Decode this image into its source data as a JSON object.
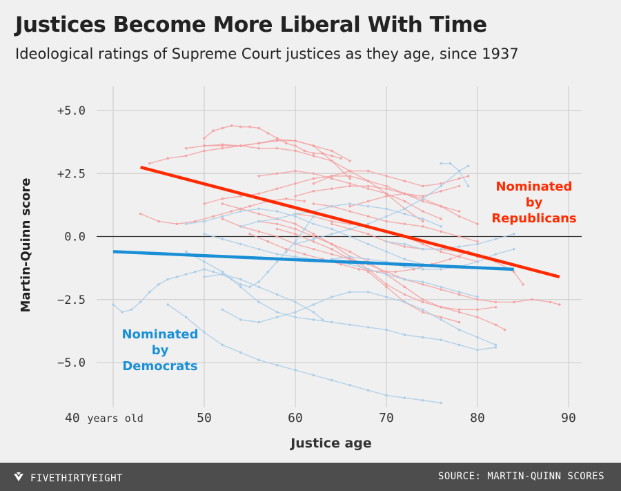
{
  "title": "Justices Become More Liberal With Time",
  "subtitle": "Ideological ratings of Supreme Court justices as they age, since 1937",
  "footer": {
    "brand": "FIVETHIRTYEIGHT",
    "source": "SOURCE: MARTIN-QUINN SCORES",
    "logo_icon": "fivethirtyeight-logo-icon"
  },
  "chart_data": {
    "type": "line",
    "title": "Justices Become More Liberal With Time",
    "subtitle": "Ideological ratings of Supreme Court justices as they age, since 1937",
    "xlabel": "Justice age",
    "ylabel": "Martin-Quinn score",
    "xlim": [
      39,
      91
    ],
    "ylim": [
      -6.6,
      5.8
    ],
    "x_ticks": [
      40,
      50,
      60,
      70,
      80,
      90
    ],
    "x_tick_labels": [
      "40 years old",
      "50",
      "60",
      "70",
      "80",
      "90"
    ],
    "y_ticks": [
      5,
      2.5,
      0,
      -2.5,
      -5
    ],
    "y_tick_labels": [
      "+5.0",
      "+2.5",
      "0.0",
      "−2.5",
      "−5.0"
    ],
    "grid": true,
    "colors": {
      "republican": "#ff2a00",
      "democrat": "#1a8fd6",
      "republican_faint": "#f5a0a0",
      "democrat_faint": "#a9cce8",
      "zero_line": "#333333",
      "grid": "#cfcfcf"
    },
    "annotations": [
      {
        "text_lines": [
          "Nominated",
          "by",
          "Republicans"
        ],
        "series": "republican"
      },
      {
        "text_lines": [
          "Nominated",
          "by",
          "Democrats"
        ],
        "series": "democrat"
      }
    ],
    "trend_lines": [
      {
        "group": "republican",
        "x": [
          43,
          89
        ],
        "y": [
          2.75,
          -1.6
        ]
      },
      {
        "group": "democrat",
        "x": [
          40,
          84
        ],
        "y": [
          -0.6,
          -1.3
        ]
      }
    ],
    "series": [
      {
        "group": "republican",
        "x": [
          50,
          51,
          52,
          53,
          54,
          55,
          56,
          57,
          58,
          59,
          60,
          61,
          62,
          63,
          64,
          65
        ],
        "y": [
          3.9,
          4.2,
          4.3,
          4.4,
          4.35,
          4.35,
          4.3,
          4.1,
          3.9,
          3.7,
          3.6,
          3.4,
          3.3,
          3.3,
          3.2,
          3.1
        ]
      },
      {
        "group": "republican",
        "x": [
          50,
          52,
          54,
          56,
          58,
          60,
          62,
          64,
          66
        ],
        "y": [
          3.6,
          3.65,
          3.6,
          3.7,
          3.85,
          3.8,
          3.6,
          3.0,
          2.3
        ]
      },
      {
        "group": "republican",
        "x": [
          48,
          50,
          52,
          54,
          56,
          58,
          60,
          62,
          64,
          66,
          68,
          70,
          72,
          74
        ],
        "y": [
          3.5,
          3.6,
          3.6,
          3.6,
          3.5,
          3.5,
          3.4,
          3.2,
          3.0,
          2.6,
          2.2,
          1.7,
          1.1,
          0.6
        ]
      },
      {
        "group": "republican",
        "x": [
          44,
          46,
          48,
          50,
          52,
          54,
          56,
          58,
          60,
          62,
          64,
          66
        ],
        "y": [
          2.9,
          3.1,
          3.2,
          3.4,
          3.5,
          3.6,
          3.7,
          3.8,
          3.8,
          3.6,
          3.4,
          3.0
        ]
      },
      {
        "group": "republican",
        "x": [
          56,
          58,
          60,
          62,
          64,
          66,
          68,
          70,
          72,
          74,
          76
        ],
        "y": [
          2.4,
          2.5,
          2.6,
          2.5,
          2.3,
          2.1,
          1.9,
          1.7,
          1.4,
          1.0,
          0.7
        ]
      },
      {
        "group": "republican",
        "x": [
          43,
          45,
          47,
          49,
          51,
          53,
          55,
          57,
          59,
          61
        ],
        "y": [
          0.9,
          0.6,
          0.5,
          0.6,
          0.8,
          1.0,
          1.2,
          1.4,
          1.5,
          1.4
        ]
      },
      {
        "group": "republican",
        "x": [
          50,
          52,
          54,
          56,
          58,
          60,
          62,
          64,
          66,
          68,
          70,
          72,
          74,
          76,
          78
        ],
        "y": [
          1.3,
          1.5,
          1.6,
          1.7,
          1.9,
          2.1,
          2.3,
          2.4,
          2.4,
          2.2,
          2.0,
          1.7,
          1.4,
          1.2,
          1.0
        ]
      },
      {
        "group": "republican",
        "x": [
          60,
          62,
          64,
          66,
          68,
          70,
          72,
          74,
          76,
          78
        ],
        "y": [
          1.6,
          1.8,
          1.9,
          2.0,
          2.0,
          1.9,
          1.7,
          1.6,
          1.8,
          2.0
        ]
      },
      {
        "group": "republican",
        "x": [
          62,
          64,
          66,
          68,
          70,
          72,
          74,
          76,
          78,
          79
        ],
        "y": [
          2.1,
          2.4,
          2.6,
          2.6,
          2.4,
          2.2,
          2.0,
          2.1,
          2.3,
          2.4
        ]
      },
      {
        "group": "republican",
        "x": [
          52,
          54,
          56,
          58,
          60,
          62,
          64,
          66,
          68,
          70,
          72,
          74,
          76,
          78,
          80,
          82,
          84,
          86,
          88,
          89
        ],
        "y": [
          0.7,
          0.4,
          0.2,
          0.0,
          -0.3,
          -0.5,
          -0.7,
          -0.9,
          -1.1,
          -1.4,
          -1.7,
          -1.9,
          -2.1,
          -2.3,
          -2.5,
          -2.6,
          -2.6,
          -2.5,
          -2.6,
          -2.7
        ]
      },
      {
        "group": "republican",
        "x": [
          52,
          54,
          56,
          58,
          60,
          62,
          64,
          66,
          68,
          70,
          72,
          74,
          76,
          78,
          80,
          82,
          83
        ],
        "y": [
          1.3,
          1.1,
          0.9,
          0.7,
          0.5,
          0.1,
          -0.3,
          -0.8,
          -1.3,
          -1.9,
          -2.3,
          -2.6,
          -2.8,
          -3.0,
          -3.2,
          -3.5,
          -3.7
        ]
      },
      {
        "group": "republican",
        "x": [
          56,
          58,
          60,
          62,
          64,
          66,
          68,
          70,
          72,
          74,
          76,
          78,
          80,
          82
        ],
        "y": [
          0.6,
          0.5,
          0.3,
          0.0,
          -0.3,
          -0.6,
          -1.0,
          -1.5,
          -2.0,
          -2.5,
          -2.8,
          -2.9,
          -2.9,
          -2.8
        ]
      },
      {
        "group": "republican",
        "x": [
          58,
          60,
          62,
          64,
          66,
          68,
          70,
          72,
          74,
          76,
          78
        ],
        "y": [
          0.3,
          0.1,
          -0.2,
          -0.5,
          -0.9,
          -1.4,
          -2.0,
          -2.6,
          -3.0,
          -3.2,
          -3.4
        ]
      },
      {
        "group": "republican",
        "x": [
          60,
          62,
          64,
          66,
          68,
          70,
          72,
          74,
          76,
          78,
          80
        ],
        "y": [
          0.9,
          0.8,
          0.6,
          0.5,
          0.4,
          0.2,
          0.0,
          -0.3,
          -0.6,
          -0.8,
          -1.0
        ]
      },
      {
        "group": "republican",
        "x": [
          55,
          57,
          59,
          61,
          63,
          65,
          67,
          69,
          71,
          73,
          75,
          77,
          79
        ],
        "y": [
          0.1,
          -0.2,
          -0.5,
          -0.7,
          -0.9,
          -1.1,
          -1.3,
          -1.4,
          -1.4,
          -1.3,
          -1.1,
          -0.9,
          -0.6
        ]
      },
      {
        "group": "republican",
        "x": [
          62,
          64,
          66,
          68,
          70,
          72,
          74,
          76,
          78,
          80
        ],
        "y": [
          1.3,
          1.2,
          1.0,
          0.8,
          0.6,
          0.5,
          0.4,
          0.2,
          0.0,
          -0.2
        ]
      },
      {
        "group": "republican",
        "x": [
          64,
          66,
          68,
          70,
          72,
          74,
          76,
          78,
          80,
          82,
          84,
          85
        ],
        "y": [
          0.5,
          0.3,
          0.1,
          -0.2,
          -0.4,
          -0.5,
          -0.5,
          -0.6,
          -0.8,
          -1.0,
          -1.4,
          -1.9
        ]
      },
      {
        "group": "republican",
        "x": [
          66,
          68,
          70,
          72,
          74,
          76,
          78,
          80
        ],
        "y": [
          1.2,
          1.4,
          1.6,
          1.7,
          1.5,
          1.2,
          0.8,
          0.5
        ]
      },
      {
        "group": "democrat",
        "x": [
          40,
          41,
          42,
          43,
          44,
          45,
          46,
          47,
          48,
          49,
          50,
          51,
          52,
          53,
          54,
          55,
          56,
          57,
          58,
          59,
          60,
          61,
          62
        ],
        "y": [
          -2.7,
          -3.0,
          -2.9,
          -2.6,
          -2.2,
          -1.9,
          -1.7,
          -1.6,
          -1.5,
          -1.4,
          -1.3,
          -1.4,
          -1.5,
          -1.7,
          -1.9,
          -2.0,
          -1.8,
          -1.4,
          -1.0,
          -0.6,
          -0.2,
          0.3,
          0.8
        ]
      },
      {
        "group": "democrat",
        "x": [
          46,
          48,
          50,
          52,
          54,
          56,
          58,
          60,
          62,
          64,
          66,
          68,
          70,
          72,
          74,
          76
        ],
        "y": [
          -2.7,
          -3.2,
          -3.8,
          -4.3,
          -4.6,
          -4.9,
          -5.1,
          -5.3,
          -5.5,
          -5.7,
          -5.9,
          -6.1,
          -6.3,
          -6.4,
          -6.5,
          -6.6
        ]
      },
      {
        "group": "democrat",
        "x": [
          48,
          50,
          52,
          54,
          56,
          58,
          60,
          62,
          64,
          66,
          68,
          70,
          72,
          74,
          76,
          78,
          80,
          82
        ],
        "y": [
          -0.6,
          -1.0,
          -1.4,
          -2.0,
          -2.6,
          -3.0,
          -3.2,
          -3.3,
          -3.4,
          -3.5,
          -3.6,
          -3.7,
          -3.9,
          -4.0,
          -4.1,
          -4.3,
          -4.5,
          -4.4
        ]
      },
      {
        "group": "democrat",
        "x": [
          50,
          52,
          54,
          56,
          58,
          60,
          62,
          63
        ],
        "y": [
          -1.6,
          -1.5,
          -1.7,
          -2.0,
          -2.3,
          -2.6,
          -3.0,
          -3.3
        ]
      },
      {
        "group": "democrat",
        "x": [
          52,
          54,
          56,
          58,
          60,
          62,
          64,
          66,
          68,
          70,
          72,
          74,
          76,
          78,
          80,
          82
        ],
        "y": [
          -2.9,
          -3.3,
          -3.4,
          -3.2,
          -3.0,
          -2.7,
          -2.4,
          -2.2,
          -2.2,
          -2.4,
          -2.6,
          -2.9,
          -3.3,
          -3.7,
          -4.0,
          -4.3
        ]
      },
      {
        "group": "democrat",
        "x": [
          50,
          52,
          54,
          56,
          58,
          60,
          62,
          64,
          66,
          68,
          70,
          72,
          74,
          76,
          78,
          80
        ],
        "y": [
          0.1,
          -0.1,
          -0.3,
          -0.5,
          -0.7,
          -0.8,
          -0.9,
          -1.0,
          -1.1,
          -1.3,
          -1.5,
          -1.7,
          -1.8,
          -2.0,
          -2.2,
          -2.4
        ]
      },
      {
        "group": "democrat",
        "x": [
          48,
          50,
          52,
          54,
          56,
          58,
          60,
          62,
          64,
          66,
          68,
          70,
          72,
          74,
          76
        ],
        "y": [
          0.5,
          0.6,
          0.8,
          1.0,
          1.1,
          1.0,
          0.8,
          0.5,
          0.3,
          0.0,
          -0.3,
          -0.6,
          -0.9,
          -1.1,
          -1.2
        ]
      },
      {
        "group": "democrat",
        "x": [
          54,
          56,
          58,
          60,
          62,
          64,
          66,
          68,
          70,
          72,
          74,
          76
        ],
        "y": [
          0.4,
          0.6,
          0.7,
          0.9,
          1.0,
          1.2,
          1.3,
          1.2,
          1.1,
          0.9,
          0.7,
          0.4
        ]
      },
      {
        "group": "democrat",
        "x": [
          60,
          62,
          64,
          66,
          68,
          70,
          72,
          74,
          76,
          78,
          79
        ],
        "y": [
          -0.3,
          -0.1,
          0.1,
          0.3,
          0.5,
          0.8,
          1.1,
          1.5,
          2.0,
          2.6,
          2.8
        ]
      },
      {
        "group": "democrat",
        "x": [
          76,
          77,
          78,
          79
        ],
        "y": [
          2.9,
          2.9,
          2.6,
          2.0
        ]
      },
      {
        "group": "democrat",
        "x": [
          64,
          66,
          68,
          70,
          72,
          74,
          76,
          78,
          80,
          82,
          84
        ],
        "y": [
          -0.9,
          -0.8,
          -0.9,
          -1.0,
          -1.2,
          -1.3,
          -1.3,
          -1.2,
          -1.0,
          -0.7,
          -0.5
        ]
      },
      {
        "group": "democrat",
        "x": [
          70,
          72,
          74,
          76,
          78,
          80,
          82,
          84
        ],
        "y": [
          -0.2,
          -0.3,
          -0.5,
          -0.5,
          -0.4,
          -0.3,
          -0.1,
          0.1
        ]
      }
    ]
  }
}
